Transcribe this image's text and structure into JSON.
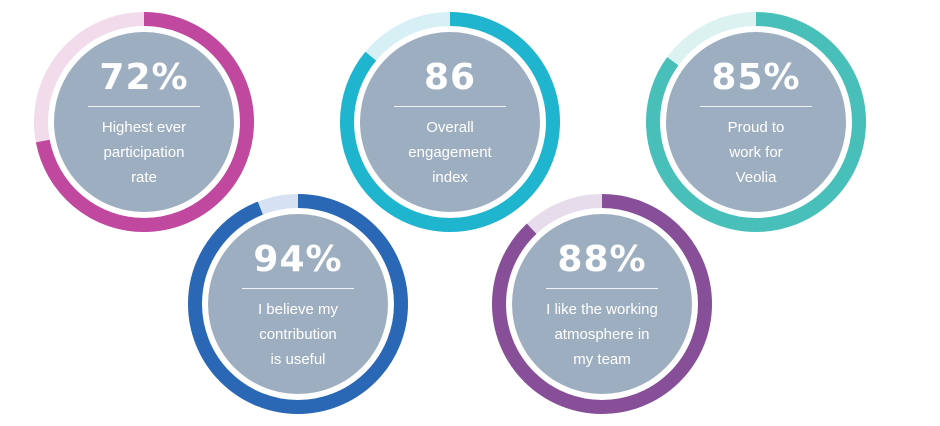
{
  "chart_data": {
    "type": "donut-gauges",
    "items": [
      {
        "value_label": "72%",
        "value": 72,
        "label_lines": [
          "Highest ever",
          "participation",
          "rate"
        ],
        "color": "#c0489e",
        "track_color": "#f2dbeb"
      },
      {
        "value_label": "86",
        "value": 86,
        "label_lines": [
          "Overall",
          "engagement",
          "index"
        ],
        "color": "#1fb5cf",
        "track_color": "#d6f0f6"
      },
      {
        "value_label": "85%",
        "value": 85,
        "label_lines": [
          "Proud to",
          "work for",
          "Veolia"
        ],
        "color": "#48bfb9",
        "track_color": "#dbf2f1"
      },
      {
        "value_label": "94%",
        "value": 94,
        "label_lines": [
          "I believe my",
          "contribution",
          "is useful"
        ],
        "color": "#2a67b5",
        "track_color": "#d6e2f3"
      },
      {
        "value_label": "88%",
        "value": 88,
        "label_lines": [
          "I like the working",
          "atmosphere in",
          "my team"
        ],
        "color": "#874f98",
        "track_color": "#e7dcec"
      }
    ]
  },
  "colors": {
    "inner_fill": "#9daec1",
    "gap_ring": "#ffffff",
    "text": "#ffffff"
  }
}
